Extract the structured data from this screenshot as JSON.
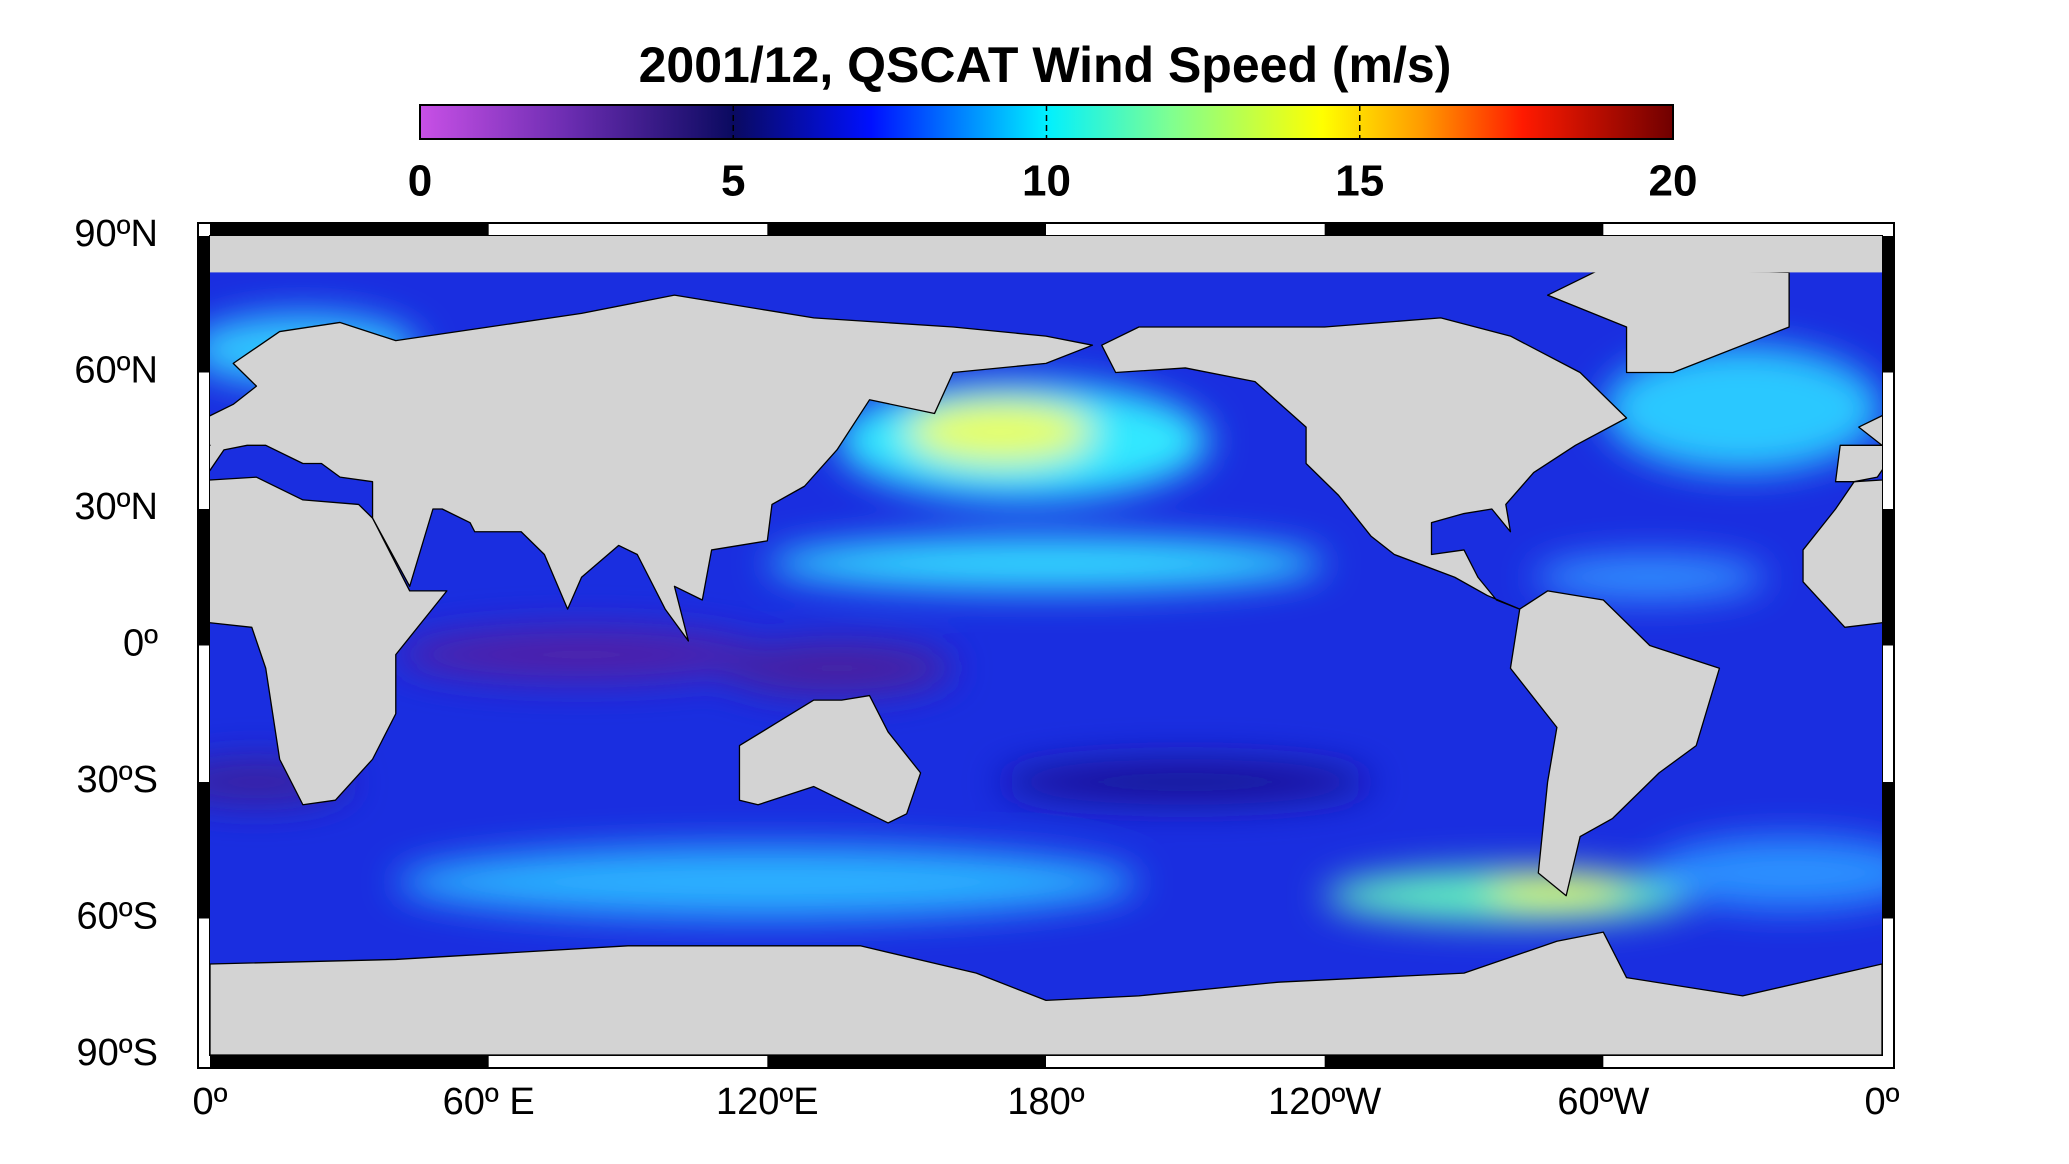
{
  "title": "2001/12,  QSCAT Wind Speed (m/s)",
  "colorbar": {
    "lim": [
      0,
      20
    ],
    "ticks": [
      0,
      5,
      10,
      15,
      20
    ]
  },
  "map": {
    "lon_lim": [
      0,
      360
    ],
    "lat_lim": [
      -90,
      90
    ],
    "lon_ticks": [
      {
        "value": 0,
        "label": "0º"
      },
      {
        "value": 60,
        "label": "60º E"
      },
      {
        "value": 120,
        "label": "120ºE"
      },
      {
        "value": 180,
        "label": "180º"
      },
      {
        "value": 240,
        "label": "120ºW"
      },
      {
        "value": 300,
        "label": "60ºW"
      },
      {
        "value": 360,
        "label": "0º"
      }
    ],
    "lat_ticks": [
      {
        "value": 90,
        "label": "90ºN"
      },
      {
        "value": 60,
        "label": "60ºN"
      },
      {
        "value": 30,
        "label": "30ºN"
      },
      {
        "value": 0,
        "label": "0º"
      },
      {
        "value": -30,
        "label": "30ºS"
      },
      {
        "value": -60,
        "label": "60ºS"
      },
      {
        "value": -90,
        "label": "90ºS"
      }
    ]
  }
}
